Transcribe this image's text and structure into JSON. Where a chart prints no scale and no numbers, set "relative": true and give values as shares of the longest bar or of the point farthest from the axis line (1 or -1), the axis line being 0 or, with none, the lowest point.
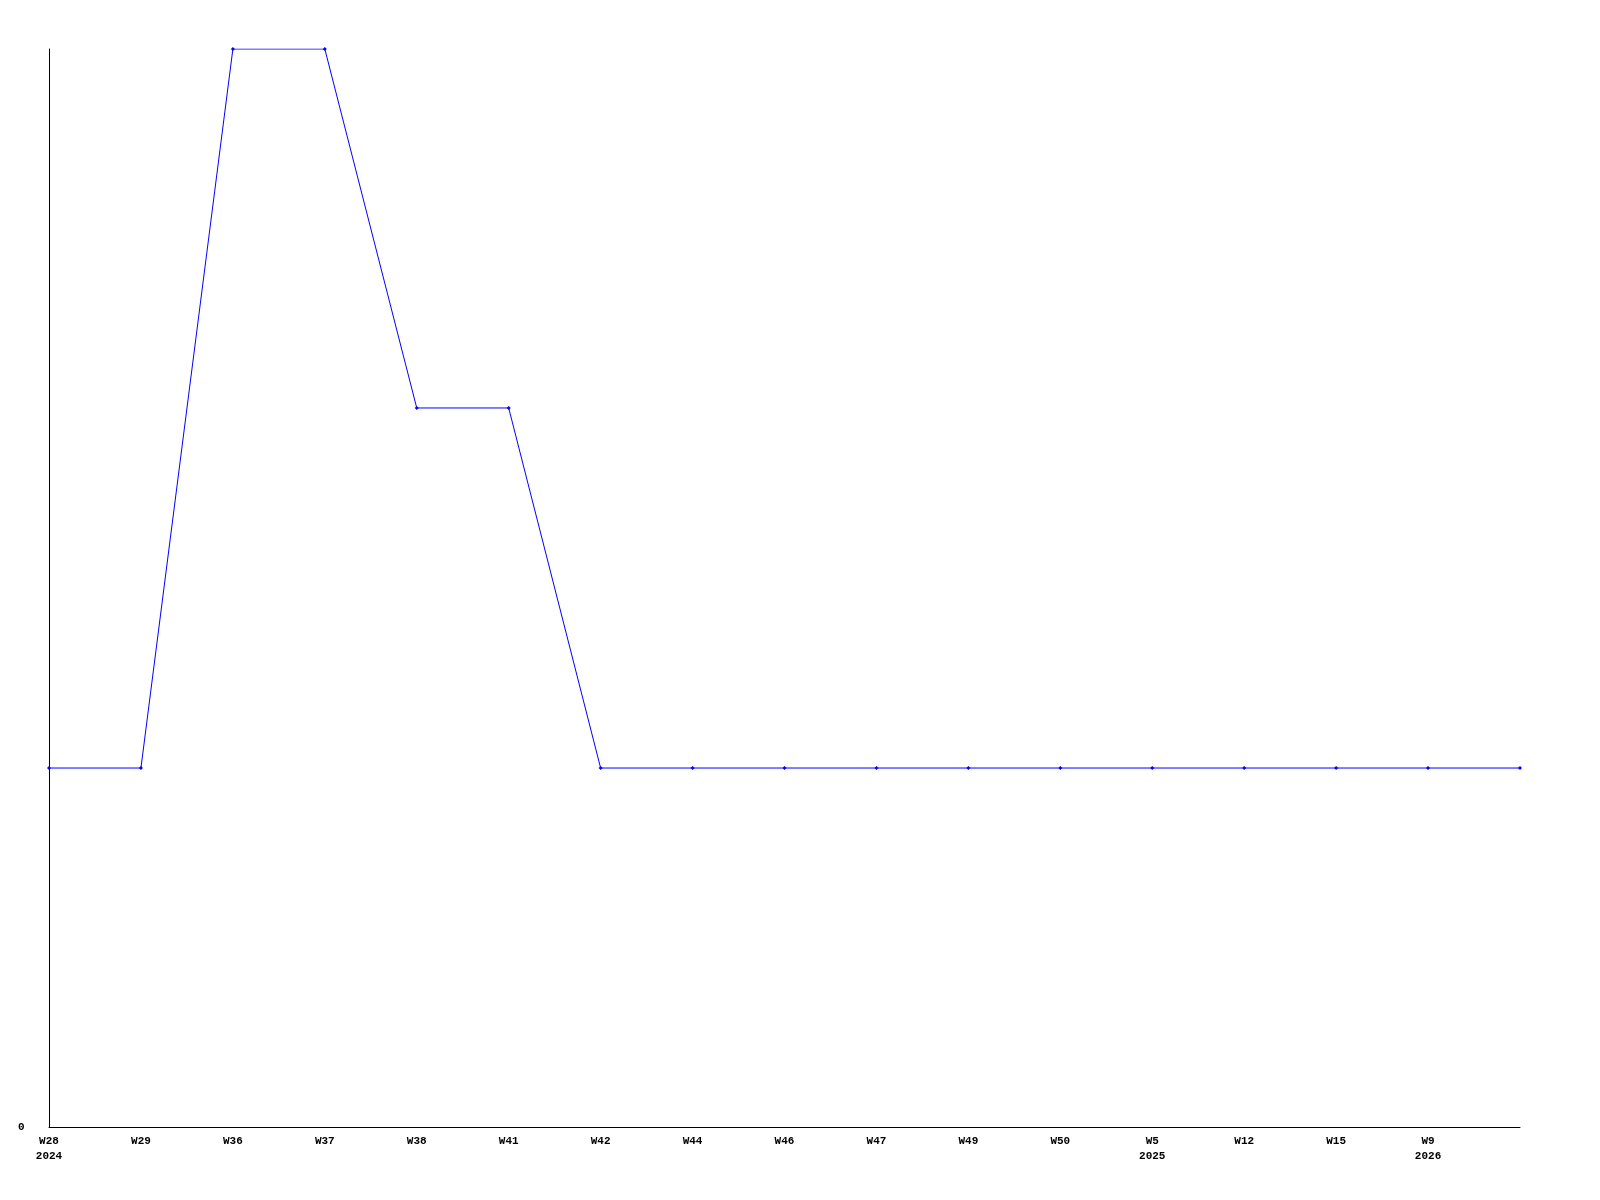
{
  "chart_data": {
    "type": "line",
    "relative": true,
    "categories": [
      "W28\n2024",
      "W29",
      "W36",
      "W37",
      "W38",
      "W41",
      "W42",
      "W44",
      "W46",
      "W47",
      "W49",
      "W50",
      "W5\n2025",
      "W12",
      "W15",
      "W9\n2026",
      null
    ],
    "series": [
      {
        "color": "#0000ff",
        "values": [
          0.333,
          0.333,
          1,
          1,
          0.667,
          0.667,
          0.333,
          0.333,
          0.333,
          0.333,
          0.333,
          0.333,
          0.333,
          0.333,
          0.333,
          0.333,
          0.333
        ]
      }
    ],
    "annotations": [
      "0"
    ],
    "marker": "diamond",
    "line_style": "solid"
  }
}
